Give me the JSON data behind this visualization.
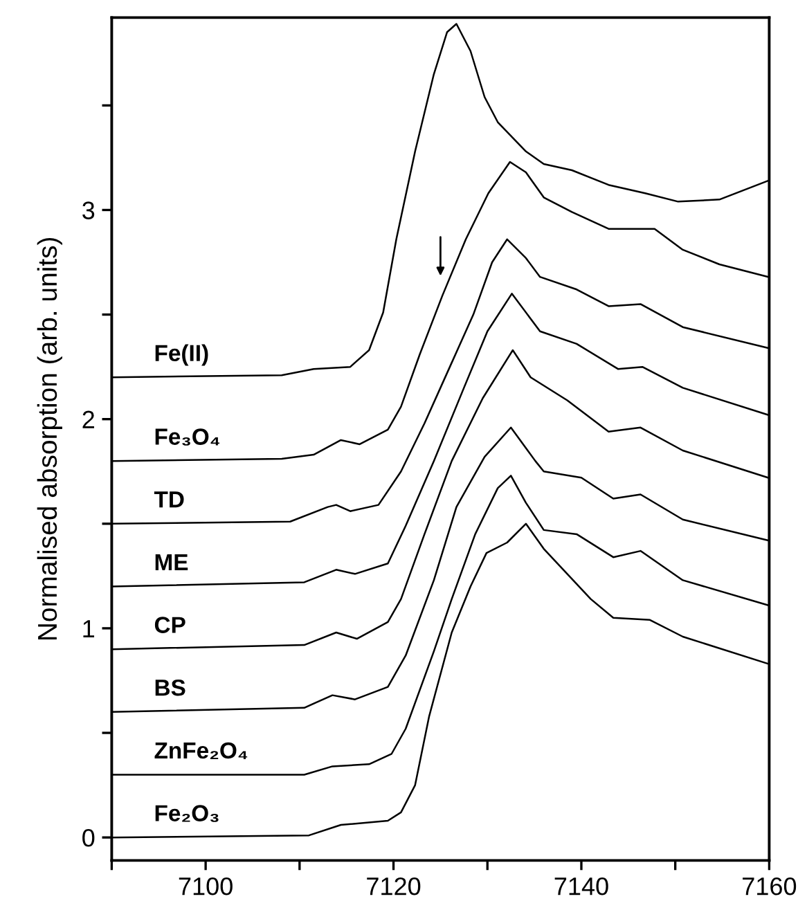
{
  "chart_data": {
    "type": "line",
    "ylabel": "Normalised absorption (arb. units)",
    "xlim": [
      7090,
      7160
    ],
    "ylim": [
      -0.11,
      3.92
    ],
    "xticks": [
      {
        "value": 7090,
        "label": null
      },
      7100,
      {
        "value": 7110,
        "label": null
      },
      7120,
      {
        "value": 7130,
        "label": null
      },
      7140,
      {
        "value": 7150,
        "label": null
      },
      7160
    ],
    "yticks": [
      0,
      {
        "value": 0.5,
        "label": null
      },
      1,
      {
        "value": 1.5,
        "label": null
      },
      2,
      {
        "value": 2.5,
        "label": null
      },
      3,
      {
        "value": 3.5,
        "label": null
      }
    ],
    "grid": false,
    "legend": false,
    "marker": "none",
    "line_style": "solid",
    "series": [
      {
        "name": "Fe(II)",
        "color": "#000000",
        "x": [
          7090,
          7108.1,
          7111.5,
          7115.4,
          7117.4,
          7118.9,
          7120.3,
          7122.3,
          7124.3,
          7125.7,
          7126.7,
          7128.2,
          7129.7,
          7131.1,
          7134.1,
          7136.0,
          7139.0,
          7142.9,
          7146.8,
          7150.3,
          7154.7,
          7159.9
        ],
        "values": [
          2.2,
          2.21,
          2.24,
          2.25,
          2.33,
          2.51,
          2.86,
          3.28,
          3.65,
          3.85,
          3.89,
          3.76,
          3.54,
          3.42,
          3.28,
          3.22,
          3.19,
          3.12,
          3.08,
          3.04,
          3.05,
          3.14
        ]
      },
      {
        "name": "Fe₃O₄",
        "color": "#000000",
        "x": [
          7090,
          7108.1,
          7111.5,
          7114.4,
          7116.4,
          7119.4,
          7120.8,
          7122.8,
          7125.2,
          7127.7,
          7130.1,
          7132.4,
          7134.1,
          7136.0,
          7139.0,
          7142.9,
          7147.8,
          7150.8,
          7154.7,
          7159.9
        ],
        "values": [
          1.8,
          1.81,
          1.83,
          1.9,
          1.88,
          1.95,
          2.06,
          2.31,
          2.59,
          2.86,
          3.08,
          3.23,
          3.18,
          3.06,
          2.99,
          2.91,
          2.91,
          2.81,
          2.74,
          2.68
        ]
      },
      {
        "name": "TD",
        "color": "#000000",
        "x": [
          7090,
          7109.0,
          7113.0,
          7113.9,
          7115.4,
          7118.4,
          7120.8,
          7123.3,
          7126.0,
          7128.5,
          7130.5,
          7132.1,
          7134.1,
          7135.6,
          7139.5,
          7142.9,
          7146.3,
          7150.8,
          7159.9
        ],
        "values": [
          1.5,
          1.51,
          1.58,
          1.59,
          1.56,
          1.59,
          1.75,
          1.98,
          2.25,
          2.5,
          2.75,
          2.86,
          2.77,
          2.68,
          2.62,
          2.54,
          2.55,
          2.44,
          2.34
        ]
      },
      {
        "name": "ME",
        "color": "#000000",
        "x": [
          7090,
          7110.5,
          7113.9,
          7115.9,
          7119.4,
          7121.3,
          7124.3,
          7127.5,
          7130.0,
          7132.6,
          7135.6,
          7139.5,
          7143.9,
          7146.5,
          7150.8,
          7159.9
        ],
        "values": [
          1.2,
          1.22,
          1.28,
          1.26,
          1.31,
          1.49,
          1.8,
          2.15,
          2.42,
          2.6,
          2.42,
          2.36,
          2.24,
          2.25,
          2.15,
          2.02
        ]
      },
      {
        "name": "CP",
        "color": "#000000",
        "x": [
          7090,
          7110.5,
          7113.9,
          7116.1,
          7119.4,
          7120.8,
          7123.3,
          7126.2,
          7129.5,
          7132.7,
          7134.6,
          7138.5,
          7142.9,
          7146.3,
          7150.8,
          7159.9
        ],
        "values": [
          0.9,
          0.92,
          0.98,
          0.95,
          1.03,
          1.14,
          1.45,
          1.8,
          2.1,
          2.33,
          2.2,
          2.09,
          1.94,
          1.96,
          1.85,
          1.72
        ]
      },
      {
        "name": "BS",
        "color": "#000000",
        "x": [
          7090,
          7110.5,
          7113.5,
          7115.9,
          7119.4,
          7121.3,
          7124.3,
          7126.7,
          7129.7,
          7132.5,
          7135.1,
          7136.0,
          7140.0,
          7143.4,
          7146.3,
          7150.8,
          7159.9
        ],
        "values": [
          0.6,
          0.62,
          0.68,
          0.66,
          0.72,
          0.87,
          1.23,
          1.58,
          1.82,
          1.96,
          1.8,
          1.75,
          1.72,
          1.62,
          1.64,
          1.52,
          1.42
        ]
      },
      {
        "name": "ZnFe₂O₄",
        "color": "#000000",
        "x": [
          7090,
          7110.5,
          7113.5,
          7117.4,
          7119.8,
          7121.3,
          7124.3,
          7126.2,
          7128.7,
          7131.1,
          7132.5,
          7134.1,
          7136.0,
          7139.5,
          7143.4,
          7146.3,
          7150.8,
          7159.9
        ],
        "values": [
          0.3,
          0.3,
          0.34,
          0.35,
          0.4,
          0.52,
          0.89,
          1.14,
          1.45,
          1.67,
          1.73,
          1.6,
          1.47,
          1.45,
          1.34,
          1.37,
          1.23,
          1.11
        ]
      },
      {
        "name": "Fe₂O₃",
        "color": "#000000",
        "x": [
          7090,
          7111.0,
          7114.4,
          7119.4,
          7120.8,
          7122.3,
          7123.8,
          7126.2,
          7128.2,
          7129.9,
          7132.1,
          7134.1,
          7136.0,
          7141.0,
          7143.4,
          7147.3,
          7150.8,
          7159.9
        ],
        "values": [
          0.0,
          0.01,
          0.06,
          0.08,
          0.12,
          0.25,
          0.58,
          0.98,
          1.2,
          1.36,
          1.41,
          1.5,
          1.38,
          1.14,
          1.05,
          1.04,
          0.96,
          0.83
        ]
      }
    ]
  }
}
